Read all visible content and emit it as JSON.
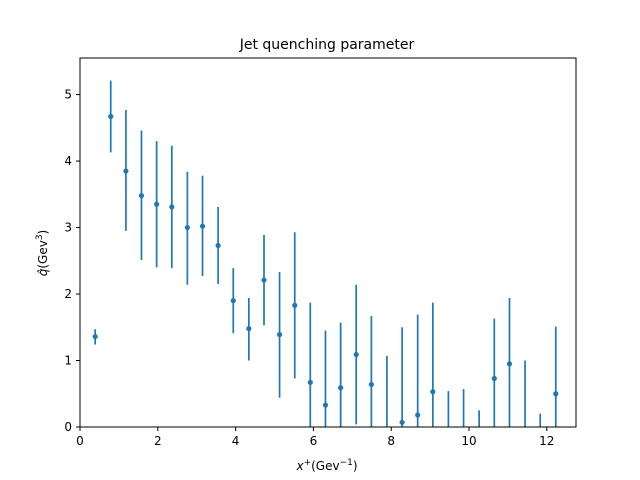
{
  "chart_data": {
    "type": "scatter",
    "title": "Jet quenching parameter",
    "xlabel": {
      "base": "x",
      "sup": "+",
      "rest": "(Gev",
      "sup2": "−1",
      "close": ")"
    },
    "ylabel": {
      "base": "q̂",
      "rest": "(Gev",
      "sup": "3",
      "close": ")"
    },
    "xlim": [
      0,
      12.75
    ],
    "ylim": [
      0,
      5.55
    ],
    "xticks": [
      0,
      2,
      4,
      6,
      8,
      10,
      12
    ],
    "yticks": [
      0,
      1,
      2,
      3,
      4,
      5
    ],
    "grid": false,
    "colors": {
      "series": "#1f77b4"
    },
    "series": [
      {
        "points": [
          {
            "x": 0.39,
            "y": 1.36,
            "lo": 1.24,
            "hi": 1.47,
            "marker": true
          },
          {
            "x": 0.79,
            "y": 4.67,
            "lo": 4.13,
            "hi": 5.21,
            "marker": true
          },
          {
            "x": 1.18,
            "y": 3.85,
            "lo": 2.95,
            "hi": 4.77,
            "marker": true
          },
          {
            "x": 1.58,
            "y": 3.48,
            "lo": 2.51,
            "hi": 4.46,
            "marker": true
          },
          {
            "x": 1.97,
            "y": 3.35,
            "lo": 2.4,
            "hi": 4.3,
            "marker": true
          },
          {
            "x": 2.36,
            "y": 3.31,
            "lo": 2.39,
            "hi": 4.23,
            "marker": true
          },
          {
            "x": 2.76,
            "y": 3.0,
            "lo": 2.14,
            "hi": 3.84,
            "marker": true
          },
          {
            "x": 3.15,
            "y": 3.02,
            "lo": 2.27,
            "hi": 3.78,
            "marker": true
          },
          {
            "x": 3.55,
            "y": 2.73,
            "lo": 2.15,
            "hi": 3.31,
            "marker": true
          },
          {
            "x": 3.94,
            "y": 1.9,
            "lo": 1.41,
            "hi": 2.39,
            "marker": true
          },
          {
            "x": 4.34,
            "y": 1.48,
            "lo": 1.0,
            "hi": 1.94,
            "marker": true
          },
          {
            "x": 4.73,
            "y": 2.21,
            "lo": 1.53,
            "hi": 2.89,
            "marker": true
          },
          {
            "x": 5.13,
            "y": 1.39,
            "lo": 0.44,
            "hi": 2.33,
            "marker": true
          },
          {
            "x": 5.52,
            "y": 1.83,
            "lo": 0.73,
            "hi": 2.93,
            "marker": true
          },
          {
            "x": 5.92,
            "y": 0.67,
            "lo": 0.0,
            "hi": 1.87,
            "marker": true
          },
          {
            "x": 6.31,
            "y": 0.33,
            "lo": 0.0,
            "hi": 1.45,
            "marker": true
          },
          {
            "x": 6.7,
            "y": 0.59,
            "lo": 0.0,
            "hi": 1.57,
            "marker": true
          },
          {
            "x": 7.1,
            "y": 1.09,
            "lo": 0.04,
            "hi": 2.14,
            "marker": true
          },
          {
            "x": 7.49,
            "y": 0.64,
            "lo": 0.0,
            "hi": 1.67,
            "marker": true
          },
          {
            "x": 7.89,
            "y": 0.0,
            "lo": 0.0,
            "hi": 1.07,
            "marker": false
          },
          {
            "x": 8.28,
            "y": 0.07,
            "lo": 0.0,
            "hi": 1.5,
            "marker": true
          },
          {
            "x": 8.68,
            "y": 0.18,
            "lo": 0.0,
            "hi": 1.69,
            "marker": true
          },
          {
            "x": 9.07,
            "y": 0.53,
            "lo": 0.0,
            "hi": 1.87,
            "marker": true
          },
          {
            "x": 9.47,
            "y": 0.0,
            "lo": 0.0,
            "hi": 0.54,
            "marker": false
          },
          {
            "x": 9.86,
            "y": 0.0,
            "lo": 0.0,
            "hi": 0.57,
            "marker": false
          },
          {
            "x": 10.26,
            "y": 0.0,
            "lo": 0.0,
            "hi": 0.25,
            "marker": false
          },
          {
            "x": 10.65,
            "y": 0.73,
            "lo": 0.0,
            "hi": 1.63,
            "marker": true
          },
          {
            "x": 11.04,
            "y": 0.95,
            "lo": 0.0,
            "hi": 1.94,
            "marker": true
          },
          {
            "x": 11.44,
            "y": 0.0,
            "lo": 0.0,
            "hi": 1.0,
            "marker": false
          },
          {
            "x": 11.83,
            "y": 0.0,
            "lo": 0.0,
            "hi": 0.2,
            "marker": false
          },
          {
            "x": 12.23,
            "y": 0.5,
            "lo": 0.0,
            "hi": 1.51,
            "marker": true
          }
        ]
      }
    ]
  }
}
